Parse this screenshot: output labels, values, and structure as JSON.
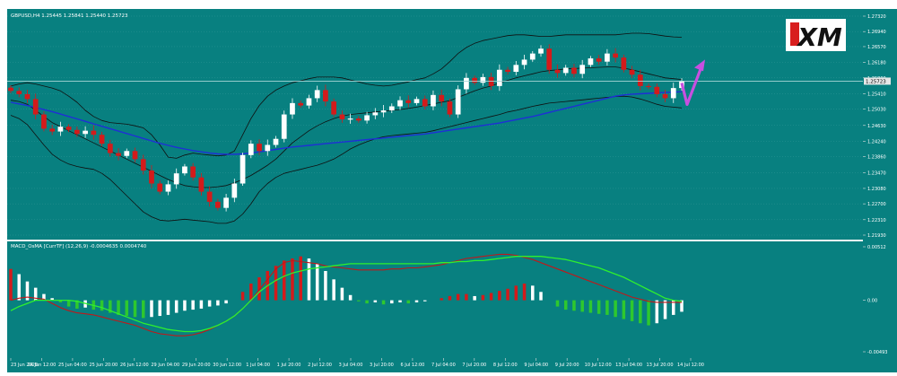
{
  "chart_data": [
    {
      "type": "candlestick",
      "title": "GBPUSD,H4  1.25445 1.25841 1.25440 1.25723",
      "y_ticks": [
        "1.27320",
        "1.26940",
        "1.26570",
        "1.26180",
        "1.25800",
        "1.25410",
        "1.25030",
        "1.24630",
        "1.24240",
        "1.23860",
        "1.23470",
        "1.23080",
        "1.22700",
        "1.22310",
        "1.21930"
      ],
      "ylim": [
        1.2193,
        1.2732
      ],
      "current_price_label": "1.25723",
      "x_tick_labels": [
        "23 Jun 2020",
        "24 Jun 12:00",
        "25 Jun 04:00",
        "25 Jun 20:00",
        "26 Jun 12:00",
        "29 Jun 04:00",
        "29 Jun 20:00",
        "30 Jun 12:00",
        "1 Jul 04:00",
        "1 Jul 20:00",
        "2 Jul 12:00",
        "3 Jul 04:00",
        "3 Jul 20:00",
        "6 Jul 12:00",
        "7 Jul 04:00",
        "7 Jul 20:00",
        "8 Jul 12:00",
        "9 Jul 04:00",
        "9 Jul 20:00",
        "10 Jul 12:00",
        "13 Jul 04:00",
        "13 Jul 20:00",
        "14 Jul 12:00"
      ],
      "close": [
        1.2548,
        1.254,
        1.2528,
        1.249,
        1.2455,
        1.2448,
        1.246,
        1.2452,
        1.2442,
        1.245,
        1.244,
        1.2418,
        1.2395,
        1.2388,
        1.24,
        1.238,
        1.2352,
        1.232,
        1.23,
        1.2318,
        1.2345,
        1.2362,
        1.2335,
        1.23,
        1.2275,
        1.226,
        1.2285,
        1.232,
        1.239,
        1.2418,
        1.24,
        1.2415,
        1.243,
        1.249,
        1.2518,
        1.2512,
        1.253,
        1.255,
        1.2522,
        1.249,
        1.2478,
        1.248,
        1.2475,
        1.2488,
        1.2495,
        1.25,
        1.251,
        1.2525,
        1.2518,
        1.2528,
        1.251,
        1.2538,
        1.2522,
        1.249,
        1.2552,
        1.258,
        1.2568,
        1.2582,
        1.256,
        1.26,
        1.2595,
        1.2612,
        1.2625,
        1.264,
        1.2652,
        1.26,
        1.2592,
        1.2605,
        1.259,
        1.2612,
        1.2628,
        1.262,
        1.264,
        1.263,
        1.26,
        1.2588,
        1.256,
        1.2558,
        1.254,
        1.253,
        1.2555,
        1.2572
      ],
      "bollinger_upper": [
        1.256,
        1.2565,
        1.2568,
        1.2565,
        1.256,
        1.2555,
        1.2548,
        1.2535,
        1.252,
        1.25,
        1.2485,
        1.2475,
        1.247,
        1.2468,
        1.2466,
        1.2462,
        1.2457,
        1.244,
        1.2415,
        1.2385,
        1.2382,
        1.239,
        1.2395,
        1.2392,
        1.239,
        1.2388,
        1.239,
        1.24,
        1.244,
        1.248,
        1.2512,
        1.2535,
        1.255,
        1.256,
        1.2568,
        1.2573,
        1.2578,
        1.2582,
        1.2582,
        1.2582,
        1.258,
        1.2575,
        1.257,
        1.2565,
        1.2562,
        1.256,
        1.2562,
        1.2566,
        1.257,
        1.2576,
        1.258,
        1.259,
        1.2602,
        1.262,
        1.264,
        1.2655,
        1.2665,
        1.2672,
        1.2676,
        1.268,
        1.2684,
        1.2686,
        1.2686,
        1.2684,
        1.2682,
        1.2682,
        1.2684,
        1.2686,
        1.2686,
        1.2686,
        1.2686,
        1.2686,
        1.2686,
        1.2686,
        1.2688,
        1.269,
        1.269,
        1.2689,
        1.2686,
        1.2683,
        1.2681,
        1.268
      ],
      "bollinger_middle": [
        1.2525,
        1.2522,
        1.2515,
        1.25,
        1.2485,
        1.247,
        1.246,
        1.245,
        1.244,
        1.243,
        1.242,
        1.241,
        1.24,
        1.239,
        1.238,
        1.237,
        1.236,
        1.235,
        1.234,
        1.233,
        1.2322,
        1.2315,
        1.2312,
        1.231,
        1.231,
        1.2312,
        1.2315,
        1.2322,
        1.233,
        1.234,
        1.2352,
        1.2365,
        1.238,
        1.24,
        1.242,
        1.2435,
        1.245,
        1.2462,
        1.2472,
        1.248,
        1.2486,
        1.249,
        1.2492,
        1.2494,
        1.2496,
        1.2498,
        1.25,
        1.2502,
        1.2505,
        1.2508,
        1.2512,
        1.2516,
        1.252,
        1.2524,
        1.2532,
        1.254,
        1.2548,
        1.2555,
        1.256,
        1.2568,
        1.2574,
        1.258,
        1.2585,
        1.259,
        1.2595,
        1.2598,
        1.26,
        1.2602,
        1.2603,
        1.2604,
        1.2605,
        1.2606,
        1.2607,
        1.2607,
        1.2604,
        1.26,
        1.2595,
        1.259,
        1.2585,
        1.258,
        1.2578,
        1.2576
      ],
      "bollinger_lower": [
        1.2488,
        1.248,
        1.2465,
        1.244,
        1.2415,
        1.2392,
        1.2378,
        1.2368,
        1.2362,
        1.2358,
        1.2355,
        1.2345,
        1.233,
        1.231,
        1.229,
        1.227,
        1.225,
        1.2238,
        1.223,
        1.2228,
        1.223,
        1.2232,
        1.223,
        1.2228,
        1.2226,
        1.2222,
        1.2222,
        1.2228,
        1.2245,
        1.227,
        1.23,
        1.232,
        1.2335,
        1.2345,
        1.235,
        1.2355,
        1.236,
        1.2365,
        1.2372,
        1.238,
        1.2392,
        1.2405,
        1.2415,
        1.2423,
        1.243,
        1.2435,
        1.2438,
        1.244,
        1.2442,
        1.2444,
        1.2446,
        1.245,
        1.2455,
        1.246,
        1.2465,
        1.247,
        1.2475,
        1.248,
        1.2485,
        1.249,
        1.2496,
        1.25,
        1.2505,
        1.251,
        1.2514,
        1.2518,
        1.252,
        1.2522,
        1.2524,
        1.2526,
        1.2528,
        1.253,
        1.2532,
        1.2534,
        1.2535,
        1.2533,
        1.2528,
        1.2522,
        1.2515,
        1.251,
        1.2508,
        1.2506
      ],
      "moving_average": [
        1.252,
        1.2516,
        1.2512,
        1.2507,
        1.2502,
        1.2497,
        1.2491,
        1.2485,
        1.2479,
        1.2473,
        1.2467,
        1.2461,
        1.2455,
        1.2449,
        1.2443,
        1.2437,
        1.2431,
        1.2425,
        1.2419,
        1.2414,
        1.2409,
        1.2405,
        1.2401,
        1.2398,
        1.2395,
        1.2393,
        1.2392,
        1.2392,
        1.2393,
        1.2395,
        1.2398,
        1.2401,
        1.2404,
        1.2407,
        1.241,
        1.2412,
        1.2414,
        1.2416,
        1.2418,
        1.242,
        1.2422,
        1.2424,
        1.2426,
        1.2428,
        1.243,
        1.2432,
        1.2434,
        1.2436,
        1.2438,
        1.244,
        1.2442,
        1.2445,
        1.2448,
        1.2451,
        1.2454,
        1.2457,
        1.246,
        1.2463,
        1.2466,
        1.2469,
        1.2473,
        1.2477,
        1.2481,
        1.2485,
        1.249,
        1.2495,
        1.25,
        1.2505,
        1.251,
        1.2515,
        1.252,
        1.2525,
        1.253,
        1.2535,
        1.2538,
        1.254,
        1.2541,
        1.2542,
        1.2543,
        1.2544,
        1.2545,
        1.2546
      ]
    },
    {
      "type": "histogram",
      "title": "MACD_OsMA [CurrTF] (12,26,9) -0.0004635 0.0004740",
      "y_ticks": [
        "0.00512",
        "0.00",
        "-0.00493"
      ],
      "ylim": [
        -0.00493,
        0.00512
      ],
      "osma": [
        0.003,
        0.0025,
        0.0018,
        0.0012,
        0.0006,
        0.0002,
        -0.0002,
        -0.0006,
        -0.0008,
        -0.0007,
        -0.0009,
        -0.001,
        -0.0012,
        -0.0014,
        -0.0015,
        -0.0016,
        -0.0017,
        -0.0016,
        -0.0015,
        -0.0014,
        -0.0012,
        -0.001,
        -0.0009,
        -0.0008,
        -0.0006,
        -0.0005,
        -0.0003,
        0.0,
        0.0008,
        0.0016,
        0.0022,
        0.0028,
        0.0033,
        0.0038,
        0.004,
        0.0042,
        0.004,
        0.0035,
        0.0028,
        0.002,
        0.0012,
        0.0005,
        -0.0001,
        -0.0003,
        -0.0002,
        -0.0004,
        -0.0003,
        -0.0002,
        -0.0003,
        -0.0002,
        -0.0001,
        0.0,
        0.0002,
        0.0004,
        0.0006,
        0.0006,
        0.0004,
        0.0005,
        0.0007,
        0.0009,
        0.0011,
        0.0014,
        0.0016,
        0.0014,
        0.0008,
        0.0,
        -0.0006,
        -0.0009,
        -0.001,
        -0.0011,
        -0.0012,
        -0.0013,
        -0.0014,
        -0.0016,
        -0.0018,
        -0.002,
        -0.0022,
        -0.0024,
        -0.0022,
        -0.0018,
        -0.0014,
        -0.0011
      ],
      "macd_line": [
        0.0,
        0.0002,
        0.0003,
        0.0002,
        0.0001,
        -0.0003,
        -0.0007,
        -0.001,
        -0.0012,
        -0.0013,
        -0.0014,
        -0.0016,
        -0.0018,
        -0.002,
        -0.0022,
        -0.0024,
        -0.0027,
        -0.003,
        -0.0032,
        -0.0033,
        -0.0034,
        -0.0034,
        -0.0033,
        -0.0031,
        -0.0028,
        -0.0024,
        -0.002,
        -0.0015,
        -0.0008,
        0.0,
        0.001,
        0.002,
        0.003,
        0.0036,
        0.0038,
        0.0037,
        0.0036,
        0.0035,
        0.0033,
        0.0032,
        0.0031,
        0.003,
        0.0029,
        0.0029,
        0.0029,
        0.0029,
        0.003,
        0.003,
        0.0031,
        0.0031,
        0.0032,
        0.0033,
        0.0034,
        0.0036,
        0.0038,
        0.004,
        0.0041,
        0.0042,
        0.0043,
        0.0044,
        0.0044,
        0.0043,
        0.0041,
        0.0039,
        0.0036,
        0.0033,
        0.003,
        0.0027,
        0.0024,
        0.0021,
        0.0018,
        0.0015,
        0.0012,
        0.0009,
        0.0006,
        0.0003,
        0.0001,
        -0.0001,
        -0.0002,
        -0.0002,
        -0.0002,
        -0.0002
      ],
      "signal_line": [
        -0.001,
        -0.0006,
        -0.0003,
        0.0,
        0.0,
        0.0,
        0.0,
        0.0,
        -0.0001,
        -0.0003,
        -0.0005,
        -0.0007,
        -0.001,
        -0.0013,
        -0.0016,
        -0.0019,
        -0.0022,
        -0.0024,
        -0.0026,
        -0.0028,
        -0.0029,
        -0.003,
        -0.003,
        -0.0029,
        -0.0027,
        -0.0024,
        -0.002,
        -0.0015,
        -0.0008,
        0.0,
        0.0008,
        0.0014,
        0.0019,
        0.0023,
        0.0026,
        0.0028,
        0.003,
        0.0031,
        0.0032,
        0.0033,
        0.0034,
        0.0035,
        0.0035,
        0.0035,
        0.0035,
        0.0035,
        0.0035,
        0.0035,
        0.0035,
        0.0035,
        0.0035,
        0.0035,
        0.0036,
        0.0036,
        0.0037,
        0.0037,
        0.0038,
        0.0038,
        0.0039,
        0.004,
        0.0041,
        0.0042,
        0.0042,
        0.0042,
        0.0042,
        0.0041,
        0.004,
        0.0039,
        0.0037,
        0.0035,
        0.0033,
        0.0031,
        0.0028,
        0.0025,
        0.0022,
        0.0018,
        0.0014,
        0.001,
        0.0006,
        0.0002,
        0.0,
        -0.0001
      ]
    }
  ],
  "colors": {
    "background": "#088080",
    "grid": "#4ba6a6",
    "bull_candle": "#ffffff",
    "bear_candle": "#d31b1b",
    "bollinger": "#101010",
    "moving_average": "#1f2fd6",
    "macd_line": "#c0181a",
    "signal_line": "#2ef02e",
    "histogram_positive": "#ffffff",
    "histogram_negative": "#ffffff",
    "histogram_rising": "#2ec82e",
    "histogram_falling": "#b0b0b0",
    "arrow": "#c74fe0"
  },
  "logo": {
    "text": "XM"
  }
}
